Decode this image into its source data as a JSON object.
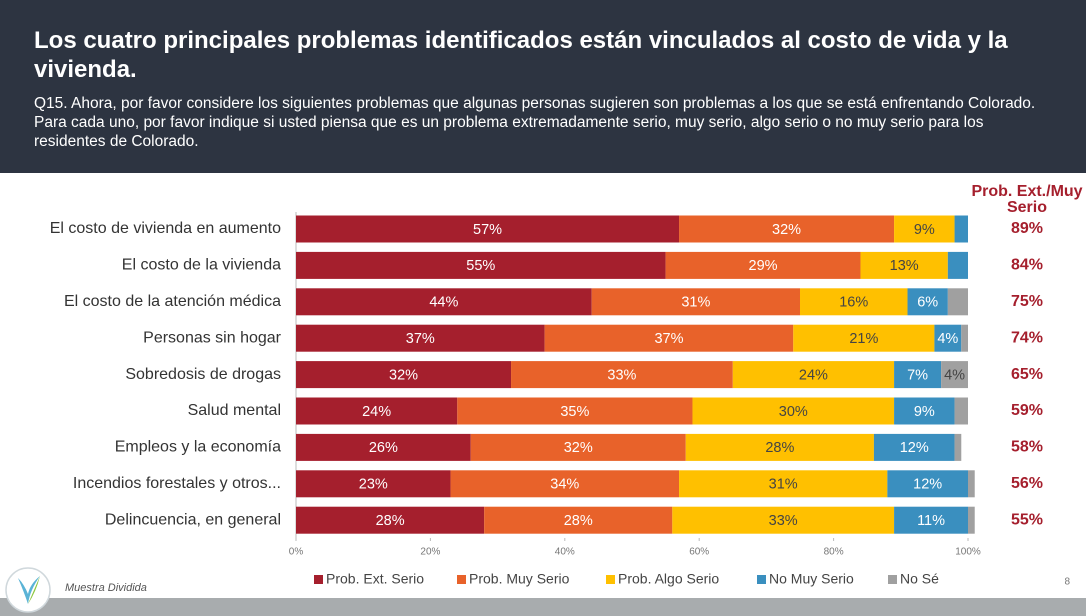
{
  "title": "Los cuatro principales problemas identificados están vinculados al costo de vida y la vivienda.",
  "subtitle": "Q15. Ahora, por favor considere los siguientes problemas que algunas personas sugieren son problemas a los que se está enfrentando Colorado. Para cada uno, por favor indique si usted piensa que es un problema extremadamente serio, muy serio, algo serio o no muy serio para los residentes de Colorado.",
  "footnote": "Muestra Dividida",
  "page_number": "8",
  "chart_data": {
    "type": "stacked_bar_horizontal",
    "categories": [
      "El costo de vivienda en aumento",
      "El costo de la vivienda",
      "El costo de la atención médica",
      "Personas sin hogar",
      "Sobredosis de drogas",
      "Salud mental",
      "Empleos y la economía",
      "Incendios forestales y otros...",
      "Delincuencia, en general"
    ],
    "series": [
      {
        "name": "Prob. Ext. Serio",
        "color": "#a51f2d",
        "values": [
          57,
          55,
          44,
          37,
          32,
          24,
          26,
          23,
          28
        ],
        "value_labels": [
          "57%",
          "55%",
          "44%",
          "37%",
          "32%",
          "24%",
          "26%",
          "23%",
          "28%"
        ]
      },
      {
        "name": "Prob. Muy Serio",
        "color": "#e8622a",
        "values": [
          32,
          29,
          31,
          37,
          33,
          35,
          32,
          34,
          28
        ],
        "value_labels": [
          "32%",
          "29%",
          "31%",
          "37%",
          "33%",
          "35%",
          "32%",
          "34%",
          "28%"
        ]
      },
      {
        "name": "Prob. Algo Serio",
        "color": "#ffc000",
        "values": [
          9,
          13,
          16,
          21,
          24,
          30,
          28,
          31,
          33
        ],
        "value_labels": [
          "9%",
          "13%",
          "16%",
          "21%",
          "24%",
          "30%",
          "28%",
          "31%",
          "33%"
        ]
      },
      {
        "name": "No Muy Serio",
        "color": "#3a8fbf",
        "values": [
          2,
          3,
          6,
          4,
          7,
          9,
          12,
          12,
          11
        ],
        "value_labels": [
          null,
          null,
          "6%",
          "4%",
          "7%",
          "9%",
          "12%",
          "12%",
          "11%"
        ]
      },
      {
        "name": "No Sé",
        "color": "#a0a0a0",
        "values": [
          0,
          0,
          3,
          1,
          4,
          2,
          1,
          1,
          1
        ],
        "value_labels": [
          null,
          null,
          null,
          null,
          "4%",
          null,
          null,
          null,
          null
        ]
      }
    ],
    "xlim": [
      0,
      100
    ],
    "xticks": [
      {
        "value": 0,
        "label": "0%"
      },
      {
        "value": 20,
        "label": "20%"
      },
      {
        "value": 40,
        "label": "40%"
      },
      {
        "value": 60,
        "label": "60%"
      },
      {
        "value": 80,
        "label": "80%"
      },
      {
        "value": 100,
        "label": "100%"
      }
    ],
    "totals": {
      "title": "Prob. Ext./Muy Serio",
      "labels": [
        "89%",
        "84%",
        "75%",
        "74%",
        "65%",
        "59%",
        "58%",
        "56%",
        "55%"
      ]
    },
    "legend": "bottom"
  }
}
